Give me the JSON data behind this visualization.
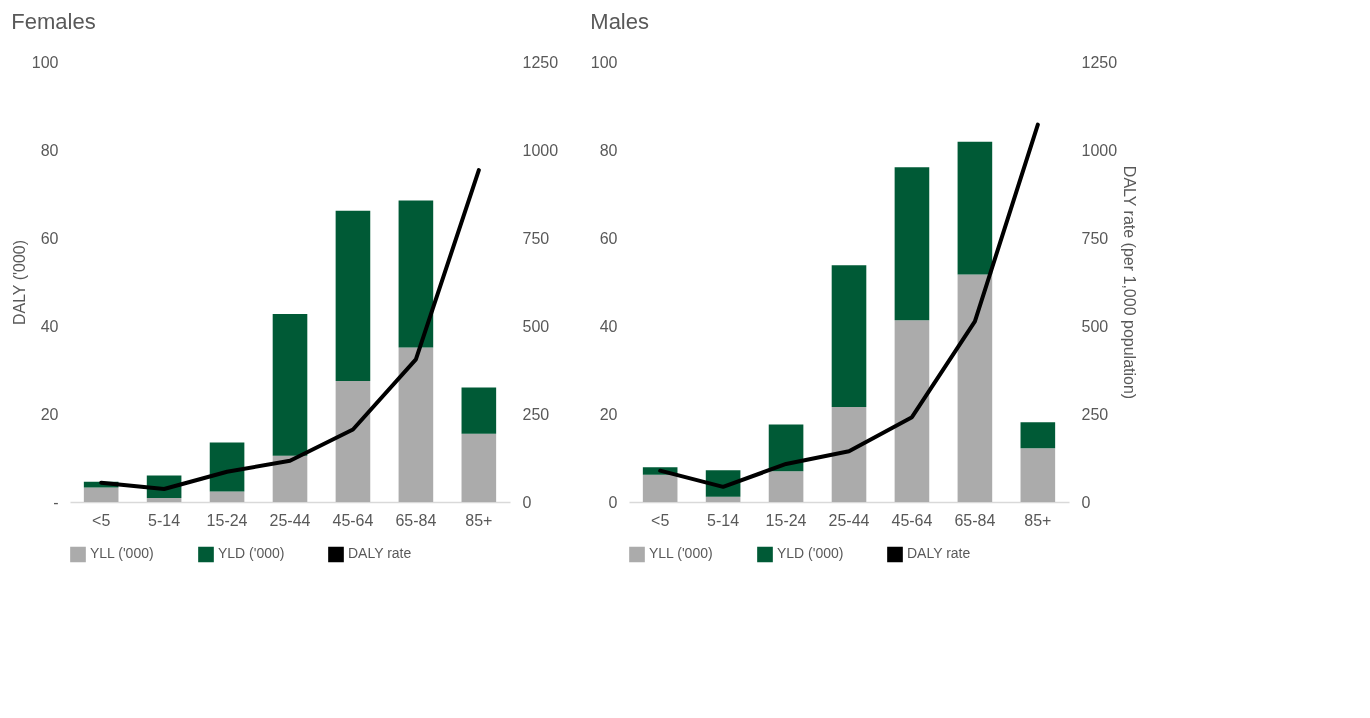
{
  "chart_data": [
    {
      "type": "bar",
      "stacked": true,
      "title": "Females",
      "ylabel": "DALY ('000)",
      "legend": "bottom",
      "categories": [
        "<5",
        "5-14",
        "15-24",
        "25-44",
        "45-64",
        "65-84",
        "85+"
      ],
      "series": [
        {
          "name": "YLL ('000)",
          "color": "#ababab",
          "values": [
            3.3,
            0.9,
            2.4,
            10.5,
            27.5,
            35.1,
            15.5
          ]
        },
        {
          "name": "YLD ('000)",
          "color": "#005a36",
          "values": [
            1.3,
            5.1,
            11.1,
            32.2,
            38.7,
            33.4,
            10.5
          ]
        },
        {
          "name": "DALY rate",
          "type": "line",
          "axis": "y2",
          "color": "#000000",
          "values": [
            55,
            37,
            86,
            117,
            206,
            405,
            943
          ]
        }
      ],
      "ylim": [
        0,
        100
      ],
      "yticks": [
        {
          "value": 0,
          "label": "-"
        },
        20,
        40,
        60,
        80,
        100
      ],
      "y2lim": [
        0,
        1250
      ],
      "y2ticks": [
        0,
        250,
        500,
        750,
        1000,
        1250
      ]
    },
    {
      "type": "bar",
      "stacked": true,
      "title": "Males",
      "y2label": "DALY rate (per 1,000 population)",
      "legend": "bottom",
      "categories": [
        "<5",
        "5-14",
        "15-24",
        "25-44",
        "45-64",
        "65-84",
        "85+"
      ],
      "series": [
        {
          "name": "YLL ('000)",
          "color": "#ababab",
          "values": [
            6.2,
            1.2,
            7.0,
            21.6,
            41.3,
            51.7,
            12.2
          ]
        },
        {
          "name": "YLD ('000)",
          "color": "#005a36",
          "values": [
            1.7,
            6.0,
            10.6,
            32.2,
            34.8,
            30.2,
            5.9
          ]
        },
        {
          "name": "DALY rate",
          "type": "line",
          "axis": "y2",
          "color": "#000000",
          "values": [
            89,
            43,
            108,
            144,
            241,
            513,
            1072
          ]
        }
      ],
      "ylim": [
        0,
        100
      ],
      "yticks": [
        0,
        20,
        40,
        60,
        80,
        100
      ],
      "y2lim": [
        0,
        1250
      ],
      "y2ticks": [
        0,
        250,
        500,
        750,
        1000,
        1250
      ]
    }
  ]
}
